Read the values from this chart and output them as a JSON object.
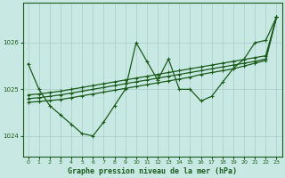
{
  "xlabel": "Graphe pression niveau de la mer (hPa)",
  "grid_color": "#a8ccc8",
  "line_color": "#1a5c1a",
  "plot_bg": "#c8e8e4",
  "ylim": [
    1023.55,
    1026.85
  ],
  "xlim": [
    -0.5,
    23.5
  ],
  "yticks": [
    1024,
    1025,
    1026
  ],
  "xticks": [
    0,
    1,
    2,
    3,
    4,
    5,
    6,
    7,
    8,
    9,
    10,
    11,
    12,
    13,
    14,
    15,
    16,
    17,
    18,
    19,
    20,
    21,
    22,
    23
  ],
  "line1": [
    1025.55,
    1025.0,
    1024.65,
    1024.45,
    1024.25,
    1024.05,
    1024.0,
    1024.3,
    1024.65,
    1025.0,
    1026.0,
    1025.6,
    1025.2,
    1025.65,
    1025.0,
    1025.0,
    1024.75,
    1024.85,
    1025.15,
    1025.45,
    1025.65,
    1026.0,
    1026.05,
    1026.55
  ],
  "line2": [
    1024.72,
    1024.74,
    1024.76,
    1024.78,
    1024.82,
    1024.86,
    1024.9,
    1024.94,
    1024.98,
    1025.02,
    1025.06,
    1025.1,
    1025.14,
    1025.18,
    1025.22,
    1025.26,
    1025.32,
    1025.36,
    1025.4,
    1025.44,
    1025.5,
    1025.56,
    1025.62,
    1026.55
  ],
  "line3": [
    1024.8,
    1024.82,
    1024.85,
    1024.88,
    1024.92,
    1024.96,
    1025.0,
    1025.04,
    1025.08,
    1025.12,
    1025.16,
    1025.2,
    1025.24,
    1025.28,
    1025.32,
    1025.36,
    1025.4,
    1025.44,
    1025.48,
    1025.52,
    1025.56,
    1025.6,
    1025.65,
    1026.55
  ],
  "line4": [
    1024.88,
    1024.9,
    1024.93,
    1024.96,
    1025.0,
    1025.04,
    1025.08,
    1025.12,
    1025.16,
    1025.2,
    1025.24,
    1025.28,
    1025.32,
    1025.36,
    1025.4,
    1025.44,
    1025.48,
    1025.52,
    1025.56,
    1025.6,
    1025.64,
    1025.68,
    1025.72,
    1026.55
  ]
}
